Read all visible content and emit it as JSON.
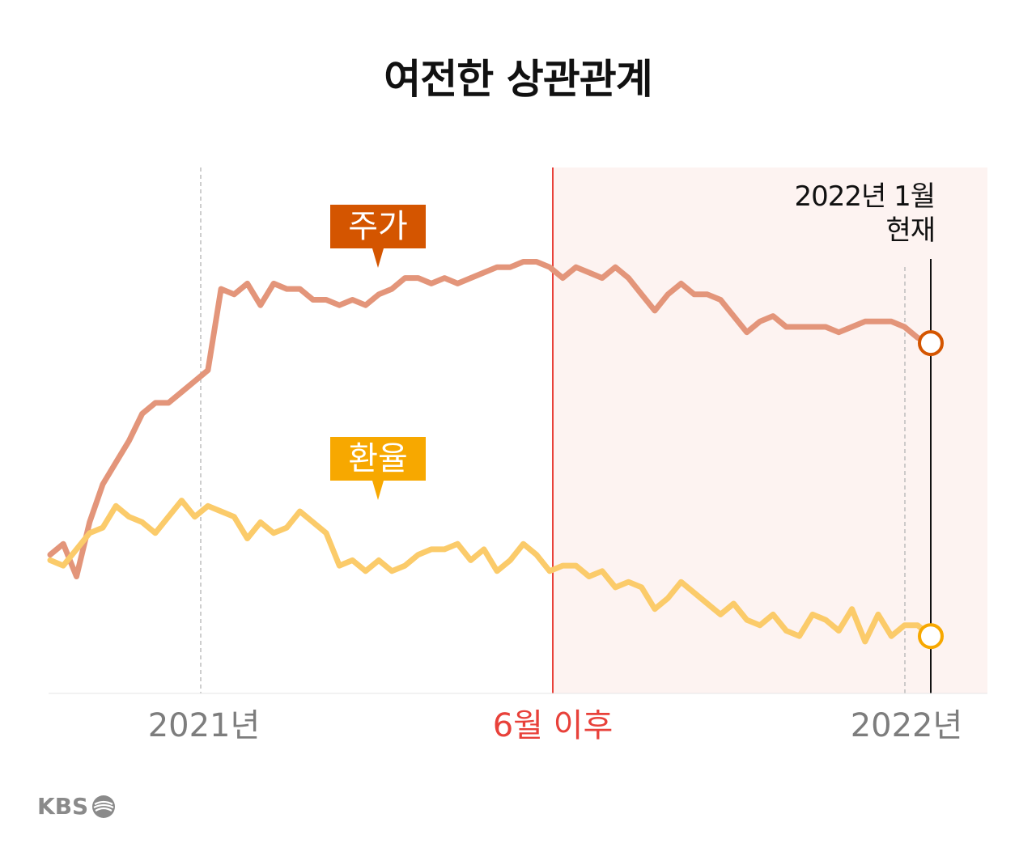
{
  "title": "여전한 상관관계",
  "now_label_line1": "2022년 1월",
  "now_label_line2": "현재",
  "tags": {
    "stock": "주가",
    "fx": "환율"
  },
  "logo_text": "KBS",
  "colors": {
    "stock_line": "#e3957a",
    "stock_tag": "#d45500",
    "fx_line": "#fbcb6a",
    "fx_tag": "#f7a800",
    "highlight_bg": "#fdf3f1",
    "divider": "#e8413a"
  },
  "chart_data": {
    "type": "line",
    "x_tick_labels": [
      "2021년",
      "6월 이후",
      "2022년"
    ],
    "highlight_region_label": "6월 이후",
    "current_point_label": "2022년 1월 현재",
    "grid": false,
    "legend": "inline tags",
    "series": [
      {
        "name": "주가",
        "x": [
          0,
          1,
          2,
          3,
          4,
          5,
          6,
          7,
          8,
          9,
          10,
          11,
          12,
          13,
          14,
          15,
          16,
          17,
          18,
          19,
          20,
          21,
          22,
          23,
          24,
          25,
          26,
          27,
          28,
          29,
          30,
          31,
          32,
          33,
          34,
          35,
          36,
          37,
          38,
          39,
          40,
          41,
          42,
          43,
          44,
          45,
          46,
          47,
          48,
          49,
          50,
          51,
          52,
          53,
          54,
          55,
          56,
          57,
          58,
          59,
          60,
          61,
          62,
          63,
          64,
          65,
          66,
          67
        ],
        "y": [
          66,
          68,
          62,
          72,
          79,
          83,
          87,
          92,
          94,
          94,
          96,
          98,
          100,
          115,
          114,
          116,
          112,
          116,
          115,
          115,
          113,
          113,
          112,
          113,
          112,
          114,
          115,
          117,
          117,
          116,
          117,
          116,
          117,
          118,
          119,
          119,
          120,
          120,
          119,
          117,
          119,
          118,
          117,
          119,
          117,
          114,
          111,
          114,
          116,
          114,
          114,
          113,
          110,
          107,
          109,
          110,
          108,
          108,
          108,
          108,
          107,
          108,
          109,
          109,
          109,
          108,
          106,
          105
        ],
        "marker_end": true
      },
      {
        "name": "환율",
        "x": [
          0,
          1,
          2,
          3,
          4,
          5,
          6,
          7,
          8,
          9,
          10,
          11,
          12,
          13,
          14,
          15,
          16,
          17,
          18,
          19,
          20,
          21,
          22,
          23,
          24,
          25,
          26,
          27,
          28,
          29,
          30,
          31,
          32,
          33,
          34,
          35,
          36,
          37,
          38,
          39,
          40,
          41,
          42,
          43,
          44,
          45,
          46,
          47,
          48,
          49,
          50,
          51,
          52,
          53,
          54,
          55,
          56,
          57,
          58,
          59,
          60,
          61,
          62,
          63,
          64,
          65,
          66,
          67
        ],
        "y": [
          65,
          64,
          67,
          70,
          71,
          75,
          73,
          72,
          70,
          73,
          76,
          73,
          75,
          74,
          73,
          69,
          72,
          70,
          71,
          74,
          72,
          70,
          64,
          65,
          63,
          65,
          63,
          64,
          66,
          67,
          67,
          68,
          65,
          67,
          63,
          65,
          68,
          66,
          63,
          64,
          64,
          62,
          63,
          60,
          61,
          60,
          56,
          58,
          61,
          59,
          57,
          55,
          57,
          54,
          53,
          55,
          52,
          51,
          55,
          54,
          52,
          56,
          50,
          55,
          51,
          53,
          53,
          51
        ]
      }
    ]
  }
}
